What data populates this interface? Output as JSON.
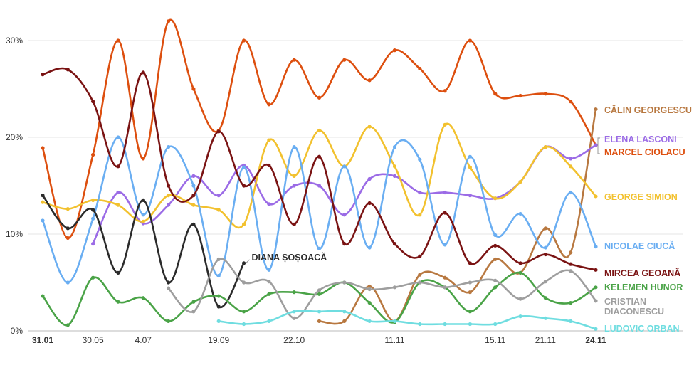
{
  "chart_data": {
    "type": "line",
    "title": "",
    "xlabel": "",
    "ylabel": "",
    "ylim": [
      0,
      33
    ],
    "y_ticks": [
      {
        "value": 0,
        "label": "0%"
      },
      {
        "value": 10,
        "label": "10%"
      },
      {
        "value": 20,
        "label": "20%"
      },
      {
        "value": 30,
        "label": "30%"
      }
    ],
    "grid": "horizontal",
    "legend": "inline labels at right",
    "n_polls": 23,
    "x_ticks": [
      {
        "index": 0,
        "label": "31.01",
        "bold": true
      },
      {
        "index": 2,
        "label": "30.05",
        "bold": false
      },
      {
        "index": 4,
        "label": "4.07",
        "bold": false
      },
      {
        "index": 7,
        "label": "19.09",
        "bold": false
      },
      {
        "index": 10,
        "label": "22.10",
        "bold": false
      },
      {
        "index": 14,
        "label": "11.11",
        "bold": false
      },
      {
        "index": 18,
        "label": "15.11",
        "bold": false
      },
      {
        "index": 20,
        "label": "21.11",
        "bold": false
      },
      {
        "index": 22,
        "label": "24.11",
        "bold": true
      }
    ],
    "series": [
      {
        "name": "MARCEL CIOLACU",
        "color": "#dd4f0f",
        "values": [
          18.9,
          9.6,
          18.2,
          30.0,
          17.8,
          32.0,
          25.0,
          20.7,
          30.0,
          23.4,
          28.0,
          24.1,
          28.0,
          25.9,
          29.0,
          27.1,
          24.8,
          30.0,
          24.5,
          24.3,
          24.5,
          23.7,
          19.2
        ]
      },
      {
        "name": "CĂLIN GEORGESCU",
        "color": "#b87840",
        "values": [
          null,
          null,
          null,
          null,
          null,
          null,
          null,
          null,
          null,
          null,
          null,
          1.0,
          1.0,
          4.6,
          1.0,
          5.8,
          5.5,
          4.0,
          7.4,
          6.0,
          10.6,
          8.1,
          22.9
        ]
      },
      {
        "name": "ELENA LASCONI",
        "color": "#9b6be6",
        "values": [
          null,
          null,
          9.0,
          14.3,
          11.1,
          13.0,
          16.0,
          14.0,
          17.1,
          13.1,
          15.0,
          15.0,
          12.0,
          15.7,
          16.0,
          14.3,
          14.3,
          14.0,
          13.7,
          15.4,
          19.0,
          17.8,
          19.2
        ]
      },
      {
        "name": "GEORGE SIMION",
        "color": "#f2c12e",
        "values": [
          13.3,
          12.6,
          13.5,
          13.0,
          11.3,
          14.0,
          13.0,
          12.5,
          11.0,
          19.7,
          16.0,
          20.7,
          17.0,
          21.1,
          17.0,
          12.0,
          21.3,
          16.9,
          13.7,
          15.4,
          19.0,
          17.0,
          13.9
        ]
      },
      {
        "name": "NICOLAE CIUCĂ",
        "color": "#6aaef2",
        "values": [
          11.4,
          5.0,
          11.6,
          20.0,
          12.0,
          19.0,
          15.0,
          5.7,
          16.9,
          6.3,
          19.0,
          8.5,
          17.0,
          8.6,
          19.0,
          17.7,
          8.9,
          18.0,
          9.9,
          12.1,
          8.6,
          14.3,
          8.7
        ]
      },
      {
        "name": "MIRCEA GEOANĂ",
        "color": "#7a1313",
        "values": [
          26.5,
          27.0,
          23.7,
          17.0,
          26.7,
          15.0,
          14.0,
          20.6,
          15.0,
          17.1,
          11.0,
          18.0,
          9.0,
          13.2,
          9.0,
          7.7,
          12.2,
          7.0,
          8.8,
          7.0,
          7.9,
          6.9,
          6.3
        ]
      },
      {
        "name": "DIANA ȘOȘOACĂ",
        "color": "#2b2b2b",
        "values": [
          14.0,
          10.6,
          12.5,
          6.0,
          13.5,
          5.0,
          11.0,
          2.5,
          7.0,
          null,
          null,
          null,
          null,
          null,
          null,
          null,
          null,
          null,
          null,
          null,
          null,
          null,
          null
        ]
      },
      {
        "name": "KELEMEN HUNOR",
        "color": "#4aa347",
        "values": [
          3.6,
          0.6,
          5.5,
          3.0,
          3.4,
          1.0,
          3.0,
          3.6,
          2.0,
          3.8,
          4.0,
          3.8,
          5.0,
          2.9,
          0.9,
          5.0,
          4.5,
          2.0,
          4.5,
          6.0,
          3.4,
          2.9,
          4.5
        ]
      },
      {
        "name": "CRISTIAN DIACONESCU",
        "color": "#9e9e9e",
        "values": [
          null,
          null,
          null,
          null,
          null,
          4.4,
          2.0,
          7.4,
          5.0,
          5.1,
          1.3,
          4.2,
          5.0,
          4.3,
          4.5,
          5.0,
          4.5,
          5.0,
          5.2,
          3.3,
          5.1,
          6.2,
          3.1
        ]
      },
      {
        "name": "LUDOVIC ORBAN",
        "color": "#6fdde0",
        "values": [
          null,
          null,
          null,
          null,
          null,
          null,
          null,
          1.0,
          0.7,
          1.0,
          2.0,
          2.0,
          2.0,
          1.0,
          1.0,
          0.7,
          0.7,
          0.7,
          0.7,
          1.5,
          1.3,
          1.0,
          0.2
        ]
      }
    ],
    "end_labels": [
      {
        "series": "CĂLIN GEORGESCU",
        "lines": [
          "CĂLIN GEORGESCU"
        ],
        "color": "#b87840"
      },
      {
        "series": "ELENA LASCONI",
        "lines": [
          "ELENA LASCONI"
        ],
        "color": "#9b6be6"
      },
      {
        "series": "MARCEL CIOLACU",
        "lines": [
          "MARCEL CIOLACU"
        ],
        "color": "#dd4f0f"
      },
      {
        "series": "GEORGE SIMION",
        "lines": [
          "GEORGE SIMION"
        ],
        "color": "#f2c12e"
      },
      {
        "series": "NICOLAE CIUCĂ",
        "lines": [
          "NICOLAE CIUCĂ"
        ],
        "color": "#6aaef2"
      },
      {
        "series": "MIRCEA GEOANĂ",
        "lines": [
          "MIRCEA GEOANĂ"
        ],
        "color": "#7a1313"
      },
      {
        "series": "KELEMEN HUNOR",
        "lines": [
          "KELEMEN HUNOR"
        ],
        "color": "#4aa347"
      },
      {
        "series": "CRISTIAN DIACONESCU",
        "lines": [
          "CRISTIAN",
          "DIACONESCU"
        ],
        "color": "#9e9e9e"
      },
      {
        "series": "LUDOVIC ORBAN",
        "lines": [
          "LUDOVIC ORBAN"
        ],
        "color": "#6fdde0"
      }
    ],
    "inline_labels": [
      {
        "series": "DIANA ȘOȘOACĂ",
        "text": "DIANA ȘOȘOACĂ",
        "color": "#2b2b2b"
      }
    ]
  }
}
